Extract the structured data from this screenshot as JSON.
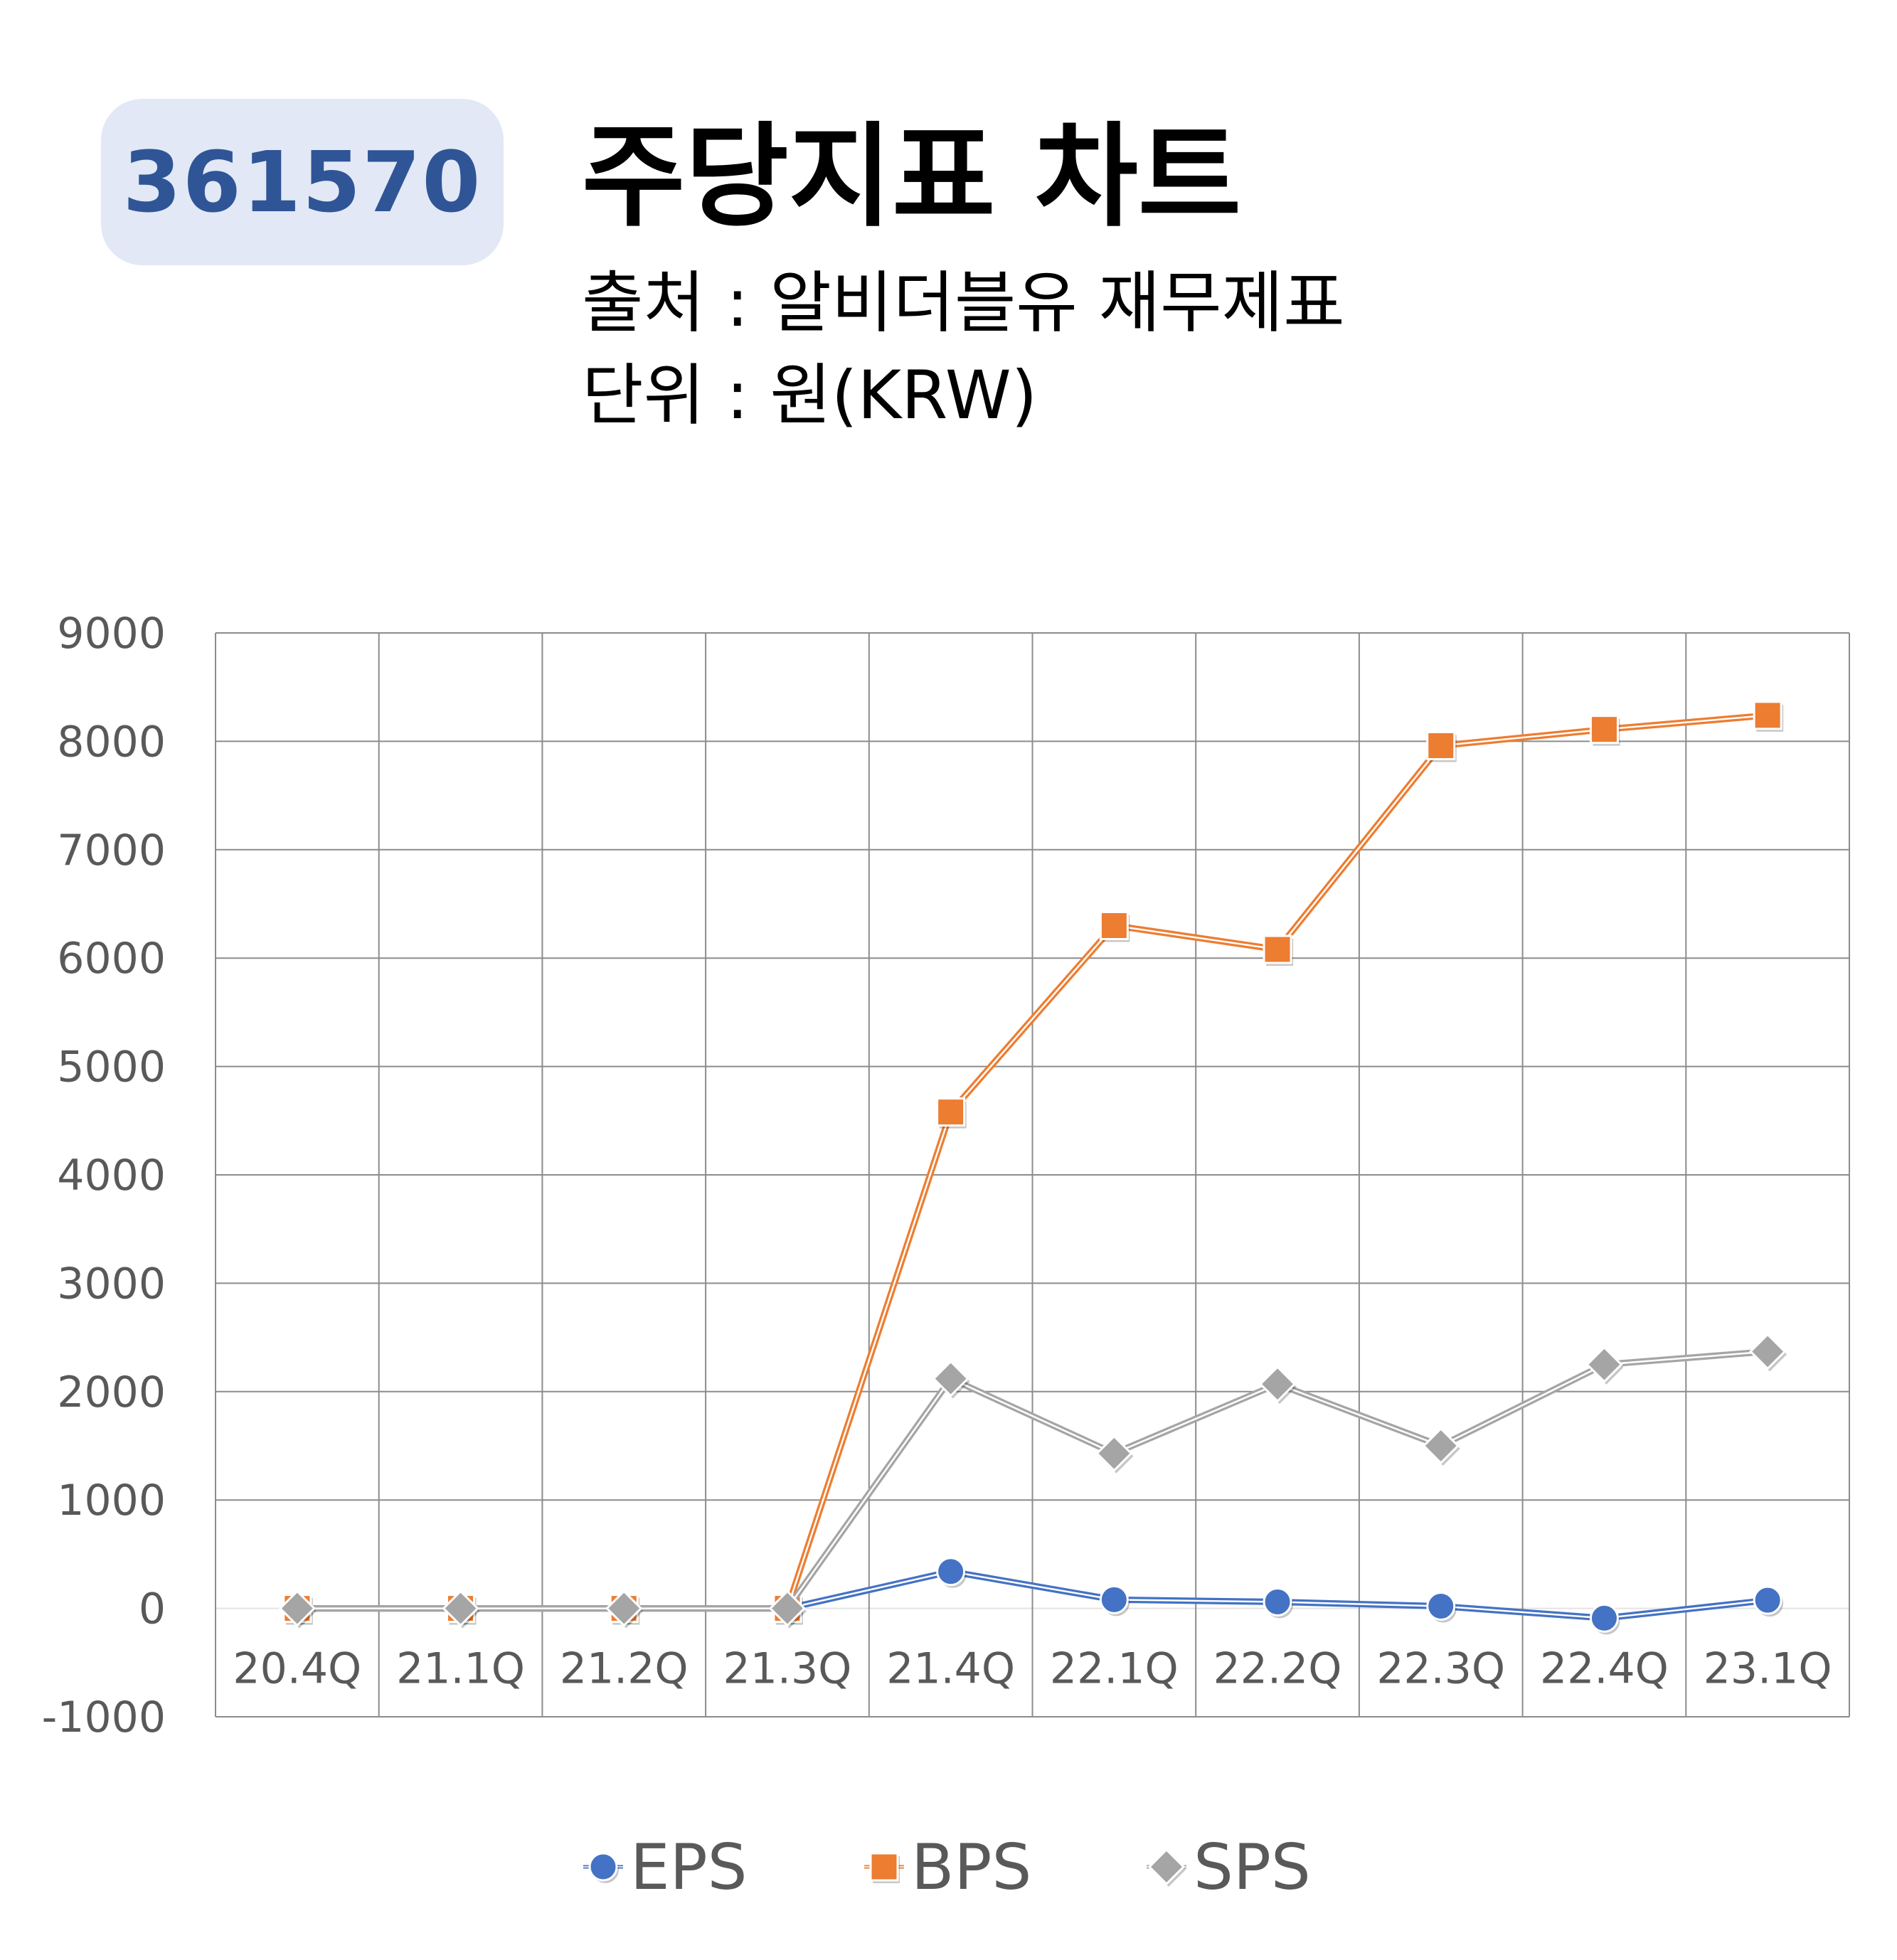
{
  "header": {
    "ticker": "361570",
    "title": "주당지표 차트",
    "source": "출처 : 알비더블유 재무제표",
    "unit": "단위 : 원(KRW)"
  },
  "chart_data": {
    "type": "line",
    "categories": [
      "20.4Q",
      "21.1Q",
      "21.2Q",
      "21.3Q",
      "21.4Q",
      "22.1Q",
      "22.2Q",
      "22.3Q",
      "22.4Q",
      "23.1Q"
    ],
    "series": [
      {
        "name": "EPS",
        "color": "#4472c4",
        "marker": "circle",
        "values": [
          0,
          0,
          0,
          0,
          340,
          80,
          60,
          20,
          -90,
          75
        ]
      },
      {
        "name": "BPS",
        "color": "#ed7d31",
        "marker": "square",
        "values": [
          0,
          0,
          0,
          0,
          4580,
          6300,
          6080,
          7960,
          8110,
          8240
        ]
      },
      {
        "name": "SPS",
        "color": "#a5a5a5",
        "marker": "diamond",
        "values": [
          0,
          0,
          0,
          0,
          2120,
          1430,
          2070,
          1500,
          2250,
          2370
        ]
      }
    ],
    "ylim": [
      -1000,
      9000
    ],
    "yticks": [
      -1000,
      0,
      1000,
      2000,
      3000,
      4000,
      5000,
      6000,
      7000,
      8000,
      9000
    ],
    "grid": true,
    "legend_position": "bottom"
  }
}
